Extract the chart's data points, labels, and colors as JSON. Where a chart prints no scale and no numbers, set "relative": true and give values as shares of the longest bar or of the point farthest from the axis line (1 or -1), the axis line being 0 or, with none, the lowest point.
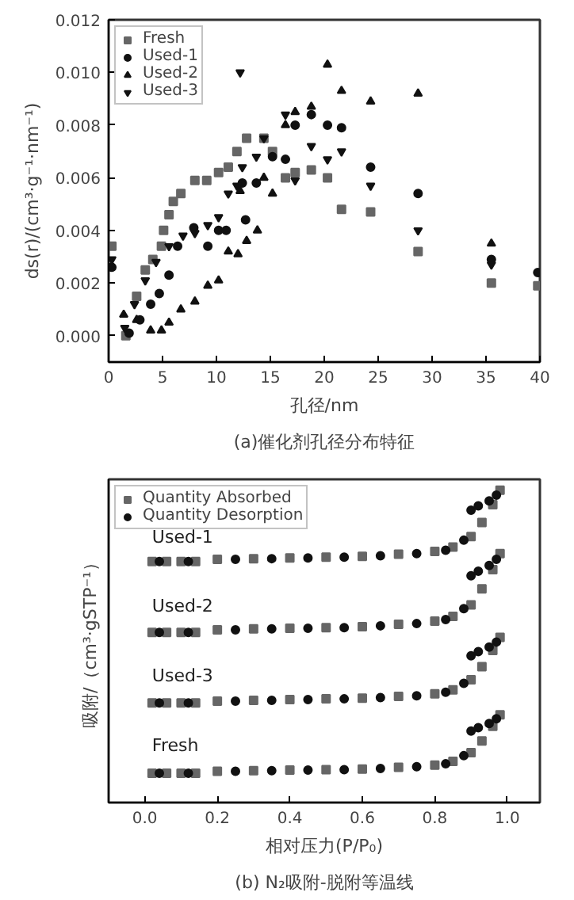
{
  "chart_data": [
    {
      "type": "scatter",
      "title": "(a)催化剂孔径分布特征",
      "xlabel": "孔径/nm",
      "ylabel": "ds(r)/(cm³·g⁻¹·nm⁻¹)",
      "xlim": [
        0,
        40
      ],
      "ylim": [
        -0.001,
        0.012
      ],
      "xticks": [
        0,
        5,
        10,
        15,
        20,
        25,
        30,
        35,
        40
      ],
      "yticks": [
        {
          "value": 0,
          "label": "0.000"
        },
        {
          "value": 0.002,
          "label": "0.002"
        },
        {
          "value": 0.004,
          "label": "0.004"
        },
        {
          "value": 0.006,
          "label": "0.006"
        },
        {
          "value": 0.008,
          "label": "0.008"
        },
        {
          "value": 0.01,
          "label": "0.010"
        },
        {
          "value": 0.012,
          "label": "0.012"
        }
      ],
      "legend": "top left",
      "series": [
        {
          "name": "Fresh",
          "color": "#666666",
          "marker": "square",
          "x": [
            0.3,
            1.6,
            2.6,
            3.4,
            4.1,
            4.9,
            5.1,
            5.6,
            6.0,
            6.7,
            8.0,
            9.1,
            10.2,
            11.1,
            11.9,
            12.8,
            14.4,
            15.2,
            16.4,
            17.3,
            18.8,
            20.3,
            21.6,
            24.3,
            28.7,
            35.5,
            39.8
          ],
          "values": [
            0.0034,
            0.0,
            0.0015,
            0.0025,
            0.0029,
            0.0034,
            0.004,
            0.0046,
            0.0051,
            0.0054,
            0.0059,
            0.0059,
            0.0062,
            0.0064,
            0.007,
            0.0075,
            0.0075,
            0.007,
            0.006,
            0.0062,
            0.0063,
            0.006,
            0.0048,
            0.0047,
            0.0032,
            0.002,
            0.0019
          ]
        },
        {
          "name": "Used-1",
          "color": "#111111",
          "marker": "circle",
          "x": [
            0.3,
            1.9,
            2.9,
            3.9,
            4.7,
            5.6,
            6.4,
            7.9,
            9.2,
            10.2,
            10.9,
            12.4,
            12.7,
            13.7,
            15.2,
            16.4,
            17.3,
            18.8,
            20.3,
            21.6,
            24.3,
            28.7,
            35.5,
            39.8
          ],
          "values": [
            0.0026,
            0.0001,
            0.0006,
            0.0012,
            0.0016,
            0.0023,
            0.0034,
            0.0041,
            0.0034,
            0.004,
            0.004,
            0.0058,
            0.0044,
            0.0058,
            0.0068,
            0.0067,
            0.008,
            0.0084,
            0.008,
            0.0079,
            0.0064,
            0.0054,
            0.0029,
            0.0024
          ]
        },
        {
          "name": "Used-2",
          "color": "#111111",
          "marker": "triangle",
          "x": [
            1.4,
            2.6,
            3.9,
            4.9,
            5.6,
            6.7,
            8.0,
            9.2,
            10.2,
            11.1,
            12.0,
            12.2,
            12.8,
            13.8,
            14.4,
            15.2,
            16.4,
            17.3,
            18.8,
            20.3,
            21.6,
            24.3,
            28.7,
            35.5
          ],
          "values": [
            0.0008,
            0.0006,
            0.0002,
            0.0002,
            0.0005,
            0.001,
            0.0013,
            0.0019,
            0.0021,
            0.0032,
            0.0031,
            0.0055,
            0.0036,
            0.004,
            0.006,
            0.0054,
            0.008,
            0.0085,
            0.0087,
            0.0103,
            0.0093,
            0.0089,
            0.0092,
            0.0035
          ]
        },
        {
          "name": "Used-3",
          "color": "#111111",
          "x": [
            0.3,
            1.5,
            2.4,
            3.4,
            4.4,
            5.6,
            6.9,
            8.0,
            9.2,
            10.2,
            11.1,
            11.9,
            12.2,
            12.4,
            13.7,
            14.4,
            16.4,
            17.3,
            18.8,
            20.3,
            21.6,
            24.3,
            28.7,
            35.5
          ],
          "values": [
            0.0029,
            0.0003,
            0.0012,
            0.0021,
            0.0028,
            0.0034,
            0.0038,
            0.0039,
            0.0042,
            0.0045,
            0.0054,
            0.0057,
            0.01,
            0.0064,
            0.0068,
            0.0075,
            0.0084,
            0.0059,
            0.0072,
            0.0067,
            0.007,
            0.0057,
            0.004,
            0.0027
          ]
        }
      ]
    },
    {
      "type": "scatter",
      "title": "(b) N₂吸附-脱附等温线",
      "xlabel": "相对压力(P/P₀)",
      "ylabel": "吸附/（cm³·gSTP⁻¹）",
      "relative": true,
      "xlim": [
        -0.1,
        1.09
      ],
      "xticks": [
        {
          "value": 0,
          "label": "0.0"
        },
        0.2,
        0.4,
        0.6,
        0.8,
        {
          "value": 1,
          "label": "1.0"
        }
      ],
      "legend": "top left",
      "annotations": [
        "Used-1",
        "Used-2",
        "Used-3",
        "Fresh"
      ],
      "series": [
        {
          "name": "Quantity Absorbed",
          "color": "#666666",
          "marker": "square",
          "x": [
            0.02,
            0.06,
            0.1,
            0.14,
            0.2,
            0.3,
            0.4,
            0.5,
            0.6,
            0.7,
            0.8,
            0.85,
            0.9,
            0.93,
            0.96,
            0.98,
            0.02,
            0.06,
            0.1,
            0.14,
            0.2,
            0.3,
            0.4,
            0.5,
            0.6,
            0.7,
            0.8,
            0.85,
            0.9,
            0.93,
            0.96,
            0.98,
            0.02,
            0.06,
            0.1,
            0.14,
            0.2,
            0.3,
            0.4,
            0.5,
            0.6,
            0.7,
            0.8,
            0.85,
            0.9,
            0.93,
            0.96,
            0.98,
            0.02,
            0.06,
            0.1,
            0.14,
            0.2,
            0.3,
            0.4,
            0.5,
            0.6,
            0.7,
            0.8,
            0.85,
            0.9,
            0.93,
            0.96,
            0.98
          ],
          "values": [
            0.772,
            0.772,
            0.772,
            0.772,
            0.779,
            0.781,
            0.783,
            0.786,
            0.788,
            0.795,
            0.804,
            0.818,
            0.852,
            0.897,
            0.954,
            1.0,
            0.545,
            0.545,
            0.545,
            0.545,
            0.553,
            0.556,
            0.558,
            0.56,
            0.563,
            0.571,
            0.581,
            0.596,
            0.633,
            0.684,
            0.746,
            0.797,
            0.319,
            0.319,
            0.319,
            0.319,
            0.325,
            0.327,
            0.33,
            0.332,
            0.334,
            0.34,
            0.348,
            0.361,
            0.393,
            0.435,
            0.487,
            0.529,
            0.094,
            0.094,
            0.094,
            0.094,
            0.1,
            0.102,
            0.104,
            0.105,
            0.107,
            0.113,
            0.12,
            0.132,
            0.16,
            0.197,
            0.244,
            0.281
          ]
        },
        {
          "name": "Quantity Desorption",
          "color": "#111111",
          "marker": "circle",
          "x": [
            0.04,
            0.12,
            0.25,
            0.35,
            0.45,
            0.55,
            0.65,
            0.75,
            0.83,
            0.88,
            0.9,
            0.92,
            0.95,
            0.97,
            0.04,
            0.12,
            0.25,
            0.35,
            0.45,
            0.55,
            0.65,
            0.75,
            0.83,
            0.88,
            0.9,
            0.92,
            0.95,
            0.97,
            0.04,
            0.12,
            0.25,
            0.35,
            0.45,
            0.55,
            0.65,
            0.75,
            0.83,
            0.88,
            0.9,
            0.92,
            0.95,
            0.97,
            0.04,
            0.12,
            0.25,
            0.35,
            0.45,
            0.55,
            0.65,
            0.75,
            0.83,
            0.88,
            0.9,
            0.92,
            0.95,
            0.97
          ],
          "values": [
            0.772,
            0.772,
            0.779,
            0.781,
            0.783,
            0.786,
            0.79,
            0.797,
            0.808,
            0.84,
            0.936,
            0.95,
            0.966,
            0.984,
            0.545,
            0.545,
            0.553,
            0.556,
            0.558,
            0.56,
            0.566,
            0.573,
            0.586,
            0.621,
            0.726,
            0.741,
            0.759,
            0.779,
            0.319,
            0.319,
            0.325,
            0.327,
            0.33,
            0.332,
            0.336,
            0.342,
            0.353,
            0.382,
            0.47,
            0.483,
            0.498,
            0.514,
            0.094,
            0.094,
            0.1,
            0.102,
            0.104,
            0.105,
            0.109,
            0.115,
            0.124,
            0.15,
            0.229,
            0.24,
            0.253,
            0.268
          ]
        }
      ]
    }
  ]
}
